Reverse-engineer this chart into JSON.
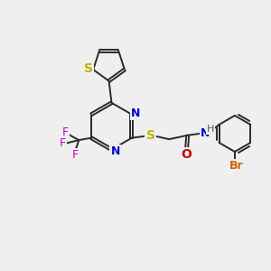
{
  "bg_color": "#efefef",
  "bond_color": "#2a2a2a",
  "bond_width": 1.4,
  "atom_colors": {
    "S": "#b8b800",
    "N": "#0000cc",
    "O": "#cc0000",
    "F": "#cc00cc",
    "Br": "#cc6600",
    "H": "#555555",
    "C": "#2a2a2a"
  },
  "figsize": [
    3.0,
    3.0
  ],
  "dpi": 100,
  "xlim": [
    0,
    10
  ],
  "ylim": [
    0,
    10
  ]
}
